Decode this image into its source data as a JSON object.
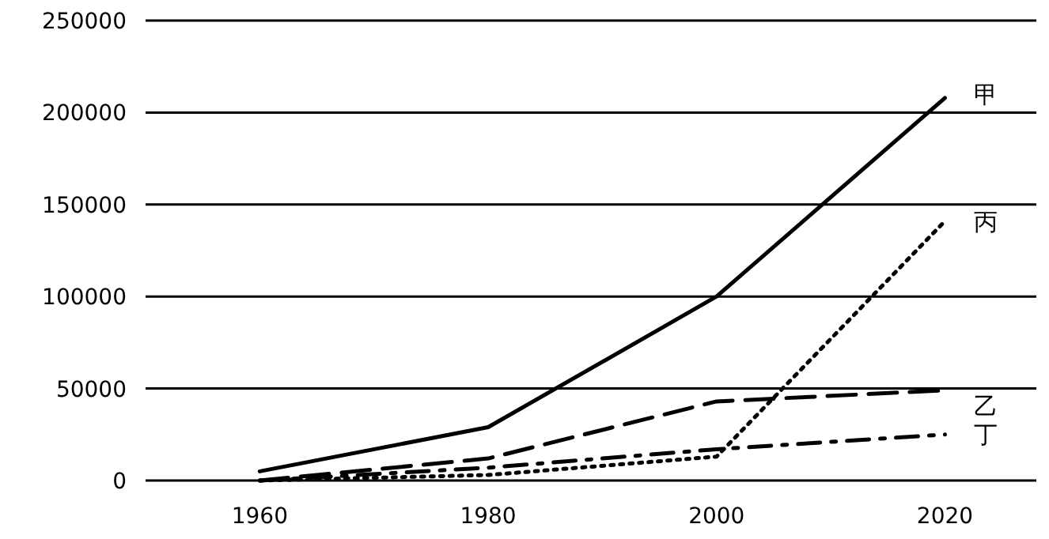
{
  "chart_data": {
    "type": "line",
    "x": [
      1960,
      1980,
      2000,
      2020
    ],
    "xlim": [
      1950,
      2028
    ],
    "xticks": [
      1960,
      1980,
      2000,
      2020
    ],
    "ylim": [
      0,
      250000
    ],
    "yticks": [
      0,
      50000,
      100000,
      150000,
      200000,
      250000
    ],
    "grid": "y",
    "marker": "none",
    "series": [
      {
        "name": "甲",
        "color": "#000000",
        "line_style": "solid",
        "values": [
          5000,
          29000,
          100000,
          208000
        ]
      },
      {
        "name": "丙",
        "color": "#000000",
        "line_style": "dotted",
        "values": [
          0,
          3000,
          13000,
          141000
        ]
      },
      {
        "name": "乙",
        "color": "#000000",
        "line_style": "dashed",
        "values": [
          0,
          12000,
          43000,
          49000
        ]
      },
      {
        "name": "丁",
        "color": "#000000",
        "line_style": "dashdot",
        "values": [
          0,
          7000,
          17000,
          25000
        ]
      }
    ]
  }
}
